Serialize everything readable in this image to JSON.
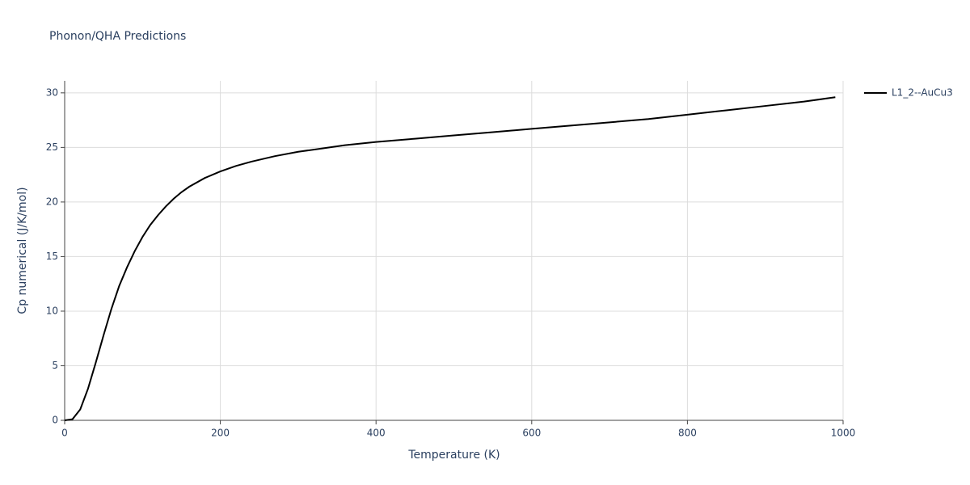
{
  "chart_data": {
    "type": "line",
    "title": "Phonon/QHA Predictions",
    "x_label": "Temperature (K)",
    "y_label": "Cp numerical (J/K/mol)",
    "x": [
      0,
      10,
      20,
      30,
      40,
      50,
      60,
      70,
      80,
      90,
      100,
      110,
      120,
      130,
      140,
      150,
      160,
      180,
      200,
      220,
      240,
      270,
      300,
      330,
      360,
      400,
      450,
      500,
      550,
      600,
      650,
      700,
      750,
      800,
      850,
      900,
      950,
      990
    ],
    "series": [
      {
        "name": "L1_2--AuCu3",
        "color": "#000000",
        "values": [
          0,
          0.1,
          1.0,
          2.9,
          5.3,
          7.8,
          10.2,
          12.3,
          14.0,
          15.5,
          16.8,
          17.9,
          18.8,
          19.6,
          20.3,
          20.9,
          21.4,
          22.2,
          22.8,
          23.3,
          23.7,
          24.2,
          24.6,
          24.9,
          25.2,
          25.5,
          25.8,
          26.1,
          26.4,
          26.7,
          27.0,
          27.3,
          27.6,
          28.0,
          28.4,
          28.8,
          29.2,
          29.6
        ]
      }
    ],
    "xlim": [
      0,
      1000
    ],
    "xticks": [
      0,
      200,
      400,
      600,
      800,
      1000
    ],
    "ylim": [
      0,
      31.1
    ],
    "yticks": [
      0,
      5,
      10,
      15,
      20,
      25,
      30
    ],
    "grid": true,
    "legend": "top-right"
  }
}
